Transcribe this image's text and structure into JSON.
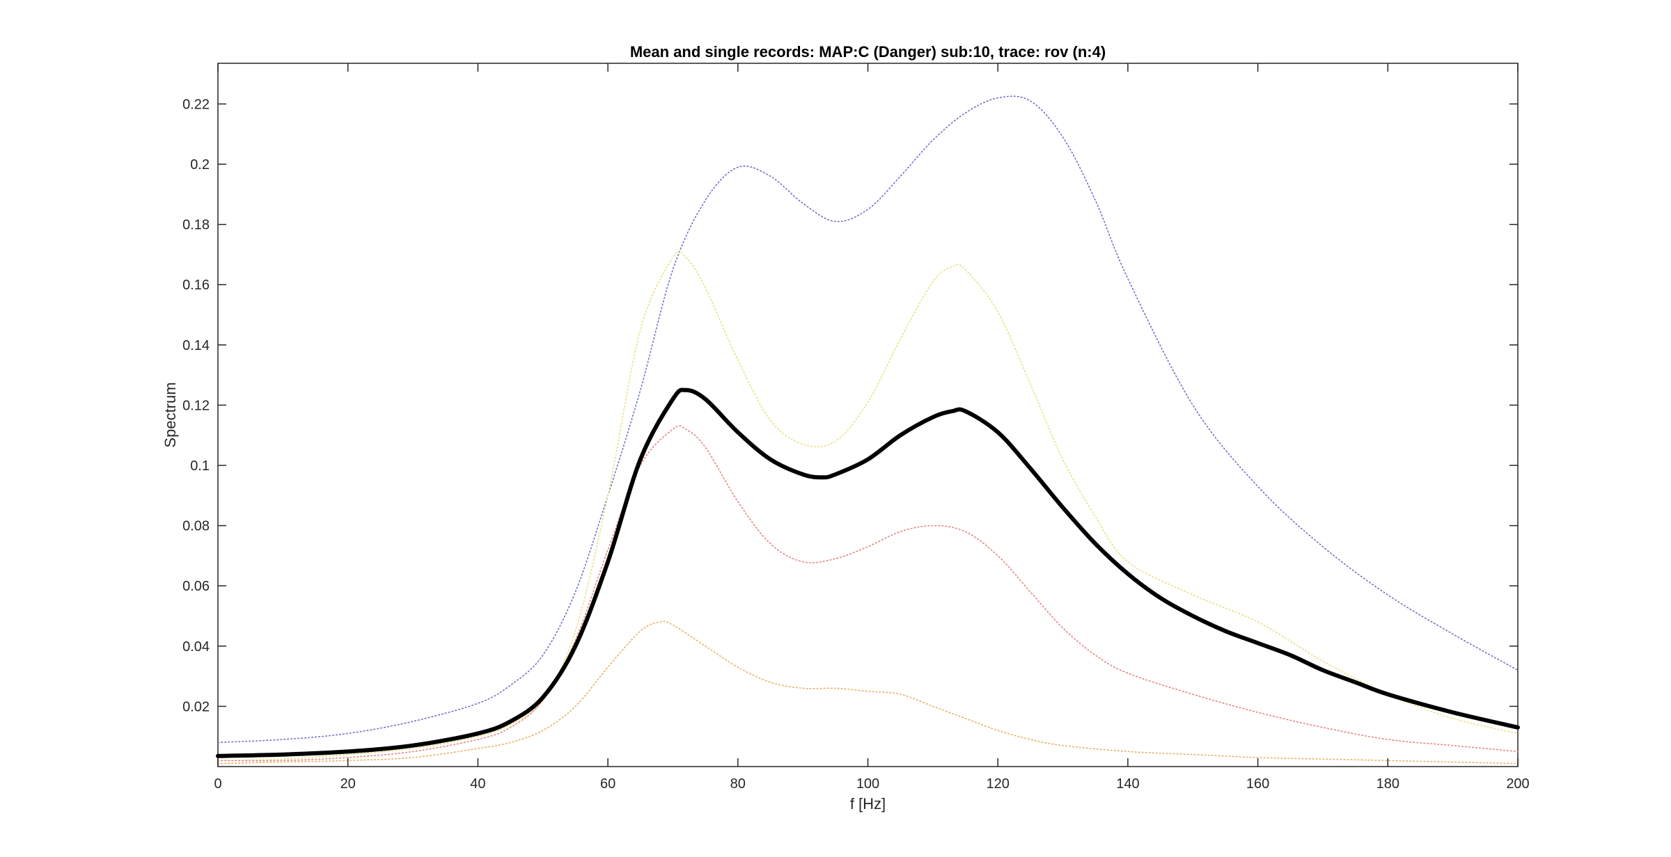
{
  "chart_data": {
    "type": "line",
    "title": "Mean and single records: MAP:C (Danger) sub:10, trace: rov (n:4)",
    "xlabel": "f [Hz]",
    "ylabel": "Spectrum",
    "xlim": [
      0,
      200
    ],
    "ylim": [
      0,
      0.2335
    ],
    "xticks": [
      0,
      20,
      40,
      60,
      80,
      100,
      120,
      140,
      160,
      180,
      200
    ],
    "yticks": [
      0.02,
      0.04,
      0.06,
      0.08,
      0.1,
      0.12,
      0.14,
      0.16,
      0.18,
      0.2,
      0.22
    ],
    "xtick_labels": [
      "0",
      "20",
      "40",
      "60",
      "80",
      "100",
      "120",
      "140",
      "160",
      "180",
      "200"
    ],
    "ytick_labels": [
      "0.02",
      "0.04",
      "0.06",
      "0.08",
      "0.1",
      "0.12",
      "0.14",
      "0.16",
      "0.18",
      "0.2",
      "0.22"
    ],
    "grid": false,
    "box": true,
    "series": [
      {
        "style": "dotted",
        "color": "#7070c8",
        "x": [
          0,
          10,
          20,
          30,
          40,
          45,
          50,
          55,
          60,
          65,
          70,
          75,
          80,
          85,
          90,
          95,
          100,
          105,
          110,
          115,
          120,
          125,
          130,
          135,
          140,
          150,
          160,
          170,
          180,
          190,
          200
        ],
        "y": [
          0.008,
          0.009,
          0.011,
          0.015,
          0.021,
          0.027,
          0.037,
          0.058,
          0.09,
          0.125,
          0.165,
          0.188,
          0.199,
          0.196,
          0.187,
          0.181,
          0.185,
          0.196,
          0.208,
          0.217,
          0.222,
          0.221,
          0.209,
          0.188,
          0.162,
          0.12,
          0.093,
          0.073,
          0.057,
          0.044,
          0.032
        ]
      },
      {
        "style": "dotted",
        "color": "#e8e080",
        "x": [
          0,
          10,
          20,
          30,
          40,
          45,
          50,
          55,
          60,
          65,
          70,
          72,
          75,
          80,
          85,
          90,
          95,
          100,
          105,
          110,
          113,
          115,
          120,
          125,
          130,
          135,
          140,
          150,
          160,
          170,
          180,
          190,
          200
        ],
        "y": [
          0.002,
          0.0025,
          0.004,
          0.006,
          0.01,
          0.014,
          0.022,
          0.045,
          0.09,
          0.145,
          0.169,
          0.169,
          0.159,
          0.135,
          0.115,
          0.107,
          0.108,
          0.121,
          0.142,
          0.161,
          0.166,
          0.165,
          0.151,
          0.127,
          0.102,
          0.083,
          0.068,
          0.057,
          0.048,
          0.035,
          0.024,
          0.016,
          0.011
        ]
      },
      {
        "style": "dotted",
        "color": "#e88080",
        "x": [
          0,
          10,
          20,
          30,
          40,
          45,
          50,
          55,
          60,
          65,
          70,
          72,
          75,
          80,
          85,
          90,
          95,
          100,
          105,
          110,
          115,
          120,
          125,
          130,
          135,
          140,
          150,
          160,
          170,
          180,
          190,
          200
        ],
        "y": [
          0.002,
          0.002,
          0.003,
          0.005,
          0.009,
          0.013,
          0.022,
          0.042,
          0.072,
          0.1,
          0.112,
          0.112,
          0.106,
          0.088,
          0.074,
          0.068,
          0.069,
          0.073,
          0.078,
          0.08,
          0.078,
          0.07,
          0.058,
          0.046,
          0.037,
          0.031,
          0.024,
          0.018,
          0.013,
          0.009,
          0.007,
          0.005
        ]
      },
      {
        "style": "dotted",
        "color": "#e8b060",
        "x": [
          0,
          10,
          20,
          30,
          40,
          45,
          50,
          55,
          60,
          65,
          68,
          70,
          75,
          80,
          85,
          90,
          95,
          100,
          105,
          110,
          115,
          120,
          125,
          130,
          140,
          150,
          160,
          170,
          180,
          190,
          200
        ],
        "y": [
          0.001,
          0.0015,
          0.002,
          0.003,
          0.006,
          0.008,
          0.012,
          0.02,
          0.033,
          0.045,
          0.048,
          0.047,
          0.04,
          0.033,
          0.028,
          0.026,
          0.026,
          0.025,
          0.024,
          0.02,
          0.016,
          0.012,
          0.009,
          0.007,
          0.005,
          0.004,
          0.003,
          0.0025,
          0.002,
          0.0015,
          0.001
        ]
      },
      {
        "style": "solid-thick",
        "color": "#000000",
        "x": [
          0,
          10,
          20,
          30,
          40,
          45,
          50,
          55,
          60,
          65,
          70,
          72,
          75,
          80,
          85,
          90,
          93,
          95,
          100,
          105,
          110,
          113,
          115,
          120,
          125,
          130,
          135,
          140,
          145,
          150,
          155,
          160,
          165,
          170,
          175,
          180,
          190,
          200
        ],
        "y": [
          0.0035,
          0.004,
          0.005,
          0.007,
          0.011,
          0.015,
          0.023,
          0.04,
          0.068,
          0.102,
          0.122,
          0.125,
          0.122,
          0.111,
          0.102,
          0.097,
          0.096,
          0.097,
          0.102,
          0.11,
          0.116,
          0.118,
          0.118,
          0.111,
          0.099,
          0.086,
          0.074,
          0.064,
          0.056,
          0.05,
          0.045,
          0.041,
          0.037,
          0.032,
          0.028,
          0.024,
          0.018,
          0.013
        ]
      }
    ]
  }
}
